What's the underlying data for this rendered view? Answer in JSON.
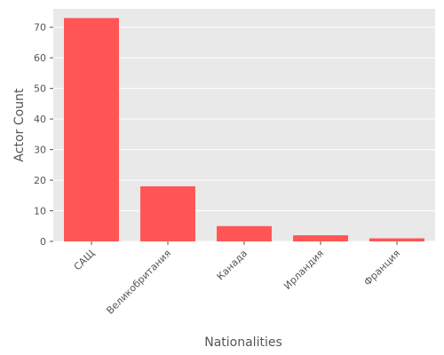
{
  "chart_data": {
    "type": "bar",
    "title": "",
    "xlabel": "Nationalities",
    "ylabel": "Actor Count",
    "categories": [
      "САЩ",
      "Великобритания",
      "Канада",
      "Ирландия",
      "Франция"
    ],
    "values": [
      73,
      18,
      5,
      2,
      1
    ],
    "ylim": [
      0,
      76
    ],
    "yticks": [
      0,
      10,
      20,
      30,
      40,
      50,
      60,
      70
    ],
    "grid": true,
    "bar_color": "#ff5555",
    "background_color": "#e9e9e9",
    "grid_color": "#ffffff",
    "label_color": "#555555"
  }
}
